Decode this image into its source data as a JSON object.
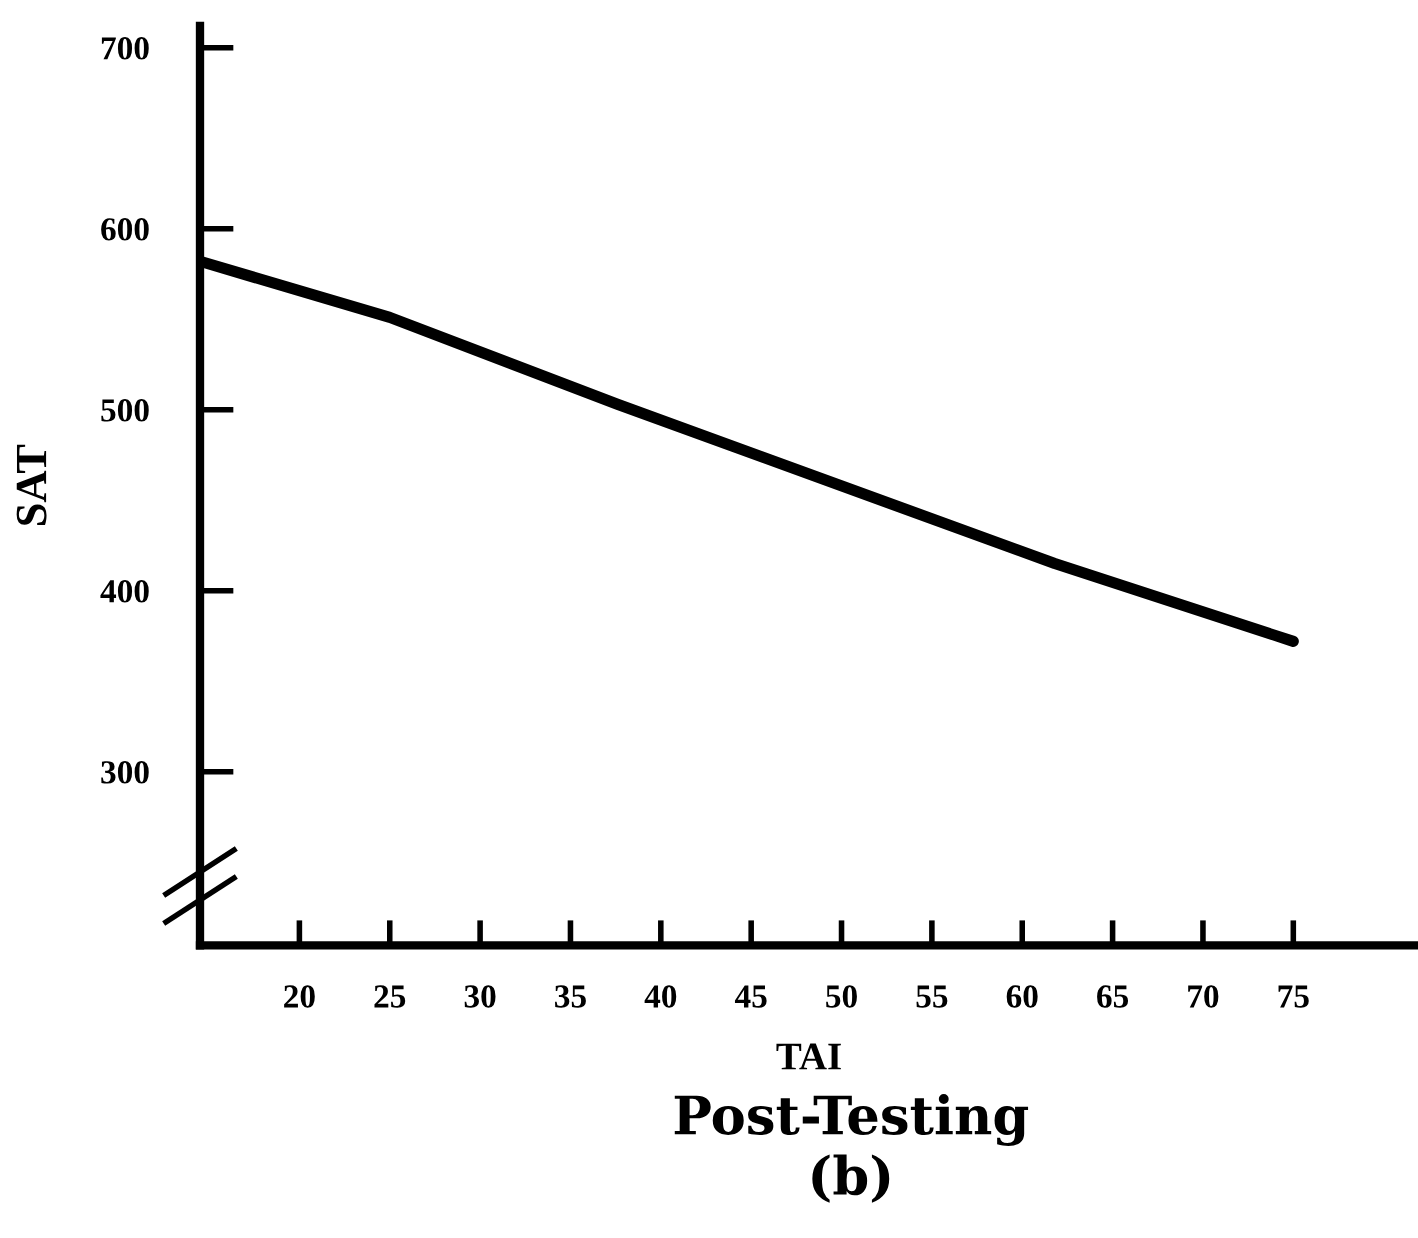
{
  "chart_data": {
    "type": "line",
    "title": "Post-Testing",
    "subtitle": "(b)",
    "xlabel": "TAI",
    "ylabel": "SAT",
    "series": [
      {
        "color": "#000000",
        "x": [
          14.5,
          25,
          37.6,
          61.8,
          75
        ],
        "values": [
          582,
          551,
          503,
          415,
          372
        ]
      }
    ],
    "xlim": [
      14.5,
      81.9
    ],
    "xticks": [
      20,
      25,
      30,
      35,
      40,
      45,
      50,
      55,
      60,
      65,
      70,
      75
    ],
    "ylim": [
      204,
      712
    ],
    "yticks": [
      300,
      400,
      500,
      600,
      700
    ],
    "grid": false,
    "marker": "none",
    "line_style": "solid"
  }
}
